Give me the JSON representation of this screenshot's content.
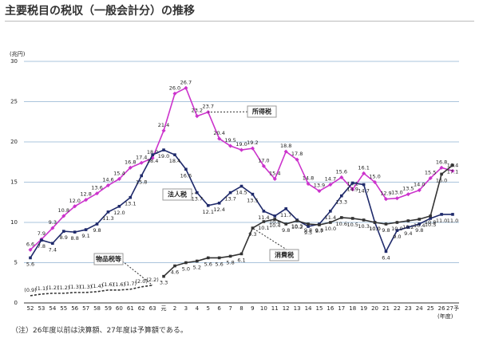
{
  "chart_data": {
    "type": "line",
    "title": "主要税目の税収（一般会計分）の推移",
    "y_label": "(兆円)",
    "x_label": "(年度)",
    "note": "（注）26年度以前は決算額、27年度は予算額である。",
    "categories": [
      "52",
      "53",
      "54",
      "55",
      "56",
      "57",
      "58",
      "59",
      "60",
      "61",
      "62",
      "63",
      "元",
      "2",
      "3",
      "4",
      "5",
      "6",
      "7",
      "8",
      "9",
      "10",
      "11",
      "12",
      "13",
      "14",
      "15",
      "16",
      "17",
      "18",
      "19",
      "20",
      "21",
      "22",
      "23",
      "24",
      "25",
      "26",
      "27予"
    ],
    "ylim": [
      0,
      30
    ],
    "yticks": [
      0,
      5,
      10,
      15,
      20,
      25,
      30
    ],
    "grid": true,
    "series": [
      {
        "name": "所得税",
        "color": "#cc33cc",
        "values": [
          6.6,
          7.9,
          9.3,
          10.8,
          12.0,
          12.8,
          13.6,
          14.6,
          15.4,
          16.8,
          17.4,
          18.0,
          21.4,
          26.0,
          26.7,
          23.2,
          23.7,
          20.4,
          19.5,
          19.0,
          19.2,
          17.0,
          15.4,
          18.8,
          17.8,
          14.8,
          13.9,
          14.7,
          15.6,
          14.1,
          16.1,
          15.0,
          12.9,
          13.0,
          13.5,
          14.0,
          15.5,
          16.8,
          16.4
        ],
        "value_labels": [
          "6.6",
          "7.9",
          "9.3",
          "10.8",
          "12.0",
          "12.8",
          "13.6",
          "14.6",
          "15.4",
          "16.8",
          "17.4",
          "18.0",
          "21.4",
          "26.0",
          "26.7",
          "23.2",
          "23.7",
          "20.4",
          "19.5",
          "19.0",
          "19.2",
          "17.0",
          "15.4",
          "18.8",
          "17.8",
          "14.8",
          "13.9",
          "14.7",
          "15.6",
          "14.1",
          "16.1",
          "15.0",
          "12.9",
          "13.0",
          "13.5",
          "14.0",
          "15.5",
          "16.8",
          "16.4"
        ]
      },
      {
        "name": "法人税",
        "color": "#1f2a6b",
        "values": [
          5.6,
          7.8,
          7.4,
          8.9,
          8.8,
          9.1,
          9.8,
          11.3,
          12.0,
          13.1,
          15.8,
          18.4,
          19.0,
          18.4,
          16.6,
          13.7,
          12.1,
          12.4,
          13.7,
          14.5,
          13.5,
          11.4,
          10.8,
          11.7,
          10.3,
          9.5,
          9.8,
          11.4,
          13.3,
          14.9,
          14.7,
          10.0,
          6.4,
          9.0,
          9.4,
          9.8,
          10.5,
          11.0,
          11.0
        ],
        "value_labels": [
          "5.6",
          "7.8",
          "7.4",
          "8.9",
          "8.8",
          "9.1",
          "9.8",
          "11.3",
          "12.0",
          "13.1",
          "15.8",
          "18.4",
          "19.0",
          "18.4",
          "16.6",
          "13.7",
          "12.1",
          "12.4",
          "13.7",
          "14.5",
          "13.5",
          "11.4",
          "10.8",
          "11.7",
          "10.3",
          "9.5",
          "9.8",
          "11.4",
          "13.3",
          "14.9",
          "14.7",
          "10.0",
          "6.4",
          "9.0",
          "9.4",
          "9.8",
          "10.5",
          "11.0",
          "11.0"
        ]
      },
      {
        "name": "消費税",
        "color": "#333333",
        "values": [
          null,
          null,
          null,
          null,
          null,
          null,
          null,
          null,
          null,
          null,
          null,
          null,
          3.3,
          4.6,
          5.0,
          5.2,
          5.6,
          5.6,
          5.8,
          6.1,
          9.3,
          10.1,
          10.4,
          9.8,
          10.2,
          9.8,
          9.7,
          10.0,
          10.6,
          10.5,
          10.3,
          10.0,
          9.8,
          10.0,
          10.2,
          10.4,
          10.8,
          16.0,
          17.1
        ],
        "value_labels": [
          null,
          null,
          null,
          null,
          null,
          null,
          null,
          null,
          null,
          null,
          null,
          null,
          "3.3",
          "4.6",
          "5.0",
          "5.2",
          "5.6",
          "5.6",
          "5.8",
          "6.1",
          "9.3",
          "10.1",
          "10.4",
          "9.8",
          "10.2",
          "9.8",
          "9.7",
          "10.0",
          "10.6",
          "10.5",
          "10.3",
          "10.0",
          "9.8",
          "10.0",
          "10.2",
          "10.4",
          "10.8",
          "16.0",
          "17.1"
        ]
      },
      {
        "name": "物品税等",
        "color": "#333333",
        "dashed": true,
        "values": [
          0.9,
          1.1,
          1.2,
          1.2,
          1.3,
          1.3,
          1.4,
          1.6,
          1.6,
          1.7,
          2.0,
          2.2,
          null,
          null,
          null,
          null,
          null,
          null,
          null,
          null,
          null,
          null,
          null,
          null,
          null,
          null,
          null,
          null,
          null,
          null,
          null,
          null,
          null,
          null,
          null,
          null,
          null,
          null,
          null
        ],
        "value_labels": [
          "(0.9)",
          "(1.1)",
          "(1.2)",
          "(1.2)",
          "(1.3)",
          "(1.3)",
          "(1.4)",
          "(1.6)",
          "(1.6)",
          "(1.7)",
          "(2.0)",
          "(2.2)",
          null,
          null,
          null,
          null,
          null,
          null,
          null,
          null,
          null,
          null,
          null,
          null,
          null,
          null,
          null,
          null,
          null,
          null,
          null,
          null,
          null,
          null,
          null,
          null,
          null,
          null,
          null
        ]
      }
    ]
  }
}
